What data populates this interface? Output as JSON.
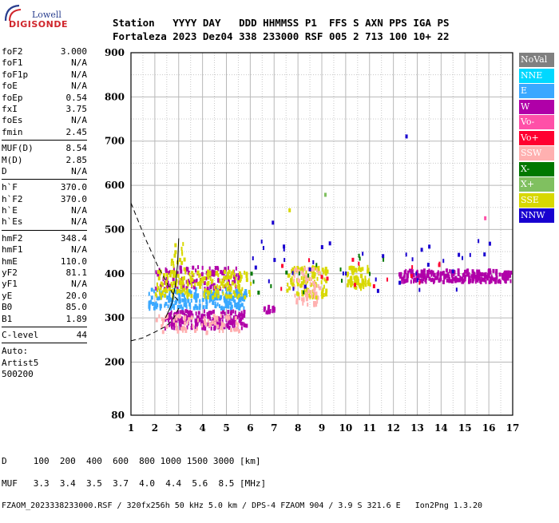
{
  "logo": {
    "line1": "Lowell",
    "line2": "DIGISONDE"
  },
  "header": {
    "row1": [
      "Station",
      "YYYY",
      "DAY",
      "DDD",
      "HHMMSS",
      "P1",
      "FFS",
      "S",
      "AXN",
      "PPS",
      "IGA",
      "PS"
    ],
    "row2": [
      "Fortaleza",
      "2023",
      "Dez04",
      "338",
      "233000",
      "RSF",
      "005",
      "2",
      "713",
      "100",
      "10+",
      "22"
    ]
  },
  "params": {
    "group1": [
      {
        "name": "foF2",
        "value": "3.000"
      },
      {
        "name": "foF1",
        "value": "N/A"
      },
      {
        "name": "foF1p",
        "value": "N/A"
      },
      {
        "name": "foE",
        "value": "N/A"
      },
      {
        "name": "foEp",
        "value": "0.54"
      },
      {
        "name": "fxI",
        "value": "3.75"
      },
      {
        "name": "foEs",
        "value": "N/A"
      },
      {
        "name": "fmin",
        "value": "2.45"
      }
    ],
    "group2": [
      {
        "name": "MUF(D)",
        "value": "8.54"
      },
      {
        "name": "M(D)",
        "value": "2.85"
      },
      {
        "name": "D",
        "value": "N/A"
      }
    ],
    "group3": [
      {
        "name": "h`F",
        "value": "370.0"
      },
      {
        "name": "h`F2",
        "value": "370.0"
      },
      {
        "name": "h`E",
        "value": "N/A"
      },
      {
        "name": "h`Es",
        "value": "N/A"
      }
    ],
    "group4": [
      {
        "name": "hmF2",
        "value": "348.4"
      },
      {
        "name": "hmF1",
        "value": "N/A"
      },
      {
        "name": "hmE",
        "value": "110.0"
      },
      {
        "name": "yF2",
        "value": "81.1"
      },
      {
        "name": "yF1",
        "value": "N/A"
      },
      {
        "name": "yE",
        "value": "20.0"
      },
      {
        "name": "B0",
        "value": "85.0"
      },
      {
        "name": "B1",
        "value": "1.89"
      }
    ],
    "group5": [
      {
        "name": "C-level",
        "value": "44"
      }
    ],
    "notes": [
      "Auto:",
      "Artist5",
      "500200"
    ]
  },
  "legend": [
    {
      "label": "NoVal",
      "color": "#808080"
    },
    {
      "label": "NNE",
      "color": "#00d8ff"
    },
    {
      "label": "E",
      "color": "#3aa8ff"
    },
    {
      "label": "W",
      "color": "#b000a8"
    },
    {
      "label": "Vo-",
      "color": "#ff50a8"
    },
    {
      "label": "Vo+",
      "color": "#ff0030"
    },
    {
      "label": "SSW",
      "color": "#ffb0b0"
    },
    {
      "label": "X-",
      "color": "#007800"
    },
    {
      "label": "X+",
      "color": "#80c060"
    },
    {
      "label": "SSE",
      "color": "#d8d800"
    },
    {
      "label": "NNW",
      "color": "#1800d0"
    }
  ],
  "footer": {
    "line1": "D     100  200  400  600  800 1000 1500 3000 [km]",
    "line2": "MUF   3.3  3.4  3.5  3.7  4.0  4.4  5.6  8.5 [MHz]",
    "line3": "FZAOM_2023338233000.RSF / 320fx256h 50 kHz 5.0 km / DPS-4 FZAOM 904 / 3.9 S 321.6 E   Ion2Png 1.3.20"
  },
  "chart_data": {
    "type": "scatter",
    "title": "",
    "xlabel": "",
    "ylabel": "",
    "xlim": [
      1,
      17
    ],
    "ylim": [
      80,
      900
    ],
    "x_ticks": [
      1,
      2,
      3,
      4,
      5,
      6,
      7,
      8,
      9,
      10,
      11,
      12,
      13,
      14,
      15,
      16,
      17
    ],
    "y_ticks": [
      80,
      200,
      300,
      400,
      500,
      600,
      700,
      800,
      900
    ],
    "grid": true,
    "point_clusters": [
      {
        "name": "E",
        "color": "#3aa8ff",
        "x": [
          1.7,
          5.8
        ],
        "y": [
          325,
          370
        ],
        "count": 260
      },
      {
        "name": "W",
        "color": "#b000a8",
        "x": [
          2.4,
          5.8
        ],
        "y": [
          280,
          320
        ],
        "count": 200
      },
      {
        "name": "W",
        "color": "#b000a8",
        "x": [
          2.0,
          5.5
        ],
        "y": [
          370,
          420
        ],
        "count": 120
      },
      {
        "name": "SSE",
        "color": "#d8d800",
        "x": [
          2.0,
          6.0
        ],
        "y": [
          350,
          410
        ],
        "count": 180
      },
      {
        "name": "SSW",
        "color": "#ffb0b0",
        "x": [
          2.0,
          5.5
        ],
        "y": [
          270,
          310
        ],
        "count": 80
      },
      {
        "name": "W",
        "color": "#b000a8",
        "x": [
          6.5,
          7.0
        ],
        "y": [
          310,
          330
        ],
        "count": 15
      },
      {
        "name": "SSE",
        "color": "#d8d800",
        "x": [
          7.5,
          9.2
        ],
        "y": [
          350,
          420
        ],
        "count": 110
      },
      {
        "name": "SSW",
        "color": "#ffb0b0",
        "x": [
          7.8,
          8.9
        ],
        "y": [
          330,
          420
        ],
        "count": 60
      },
      {
        "name": "SSE",
        "color": "#d8d800",
        "x": [
          10.0,
          11.0
        ],
        "y": [
          370,
          420
        ],
        "count": 70
      },
      {
        "name": "W",
        "color": "#b000a8",
        "x": [
          12.2,
          16.9
        ],
        "y": [
          385,
          412
        ],
        "count": 260
      },
      {
        "name": "SSE",
        "color": "#d8d800",
        "x": [
          2.6,
          3.2
        ],
        "y": [
          380,
          480
        ],
        "count": 30
      },
      {
        "name": "NNW",
        "color": "#1800d0",
        "x": [
          6.0,
          16.0
        ],
        "y": [
          360,
          480
        ],
        "count": 40
      },
      {
        "name": "X-",
        "color": "#007800",
        "x": [
          6.0,
          13.0
        ],
        "y": [
          360,
          450
        ],
        "count": 15
      },
      {
        "name": "Vo+",
        "color": "#ff0030",
        "x": [
          7.0,
          15.0
        ],
        "y": [
          370,
          440
        ],
        "count": 15
      }
    ],
    "isolated_points": [
      {
        "x": 12.5,
        "y": 715,
        "color": "#1800d0"
      },
      {
        "x": 9.1,
        "y": 583,
        "color": "#80c060"
      },
      {
        "x": 15.8,
        "y": 530,
        "color": "#ff50a8"
      },
      {
        "x": 7.6,
        "y": 548,
        "color": "#d8d800"
      },
      {
        "x": 6.9,
        "y": 520,
        "color": "#1800d0"
      }
    ],
    "traces": [
      {
        "name": "dashed-curve",
        "style": "dashed",
        "points": [
          [
            1.0,
            560
          ],
          [
            1.6,
            480
          ],
          [
            2.1,
            420
          ],
          [
            2.5,
            380
          ],
          [
            2.8,
            350
          ],
          [
            3.0,
            338
          ]
        ]
      },
      {
        "name": "dashed-lower",
        "style": "dashed",
        "points": [
          [
            1.0,
            248
          ],
          [
            1.5,
            255
          ],
          [
            2.0,
            268
          ],
          [
            2.5,
            282
          ],
          [
            2.8,
            300
          ],
          [
            3.0,
            322
          ]
        ]
      },
      {
        "name": "profile",
        "style": "solid",
        "points": [
          [
            2.45,
            300
          ],
          [
            2.7,
            330
          ],
          [
            2.85,
            370
          ],
          [
            2.95,
            420
          ],
          [
            3.0,
            480
          ]
        ]
      }
    ]
  }
}
